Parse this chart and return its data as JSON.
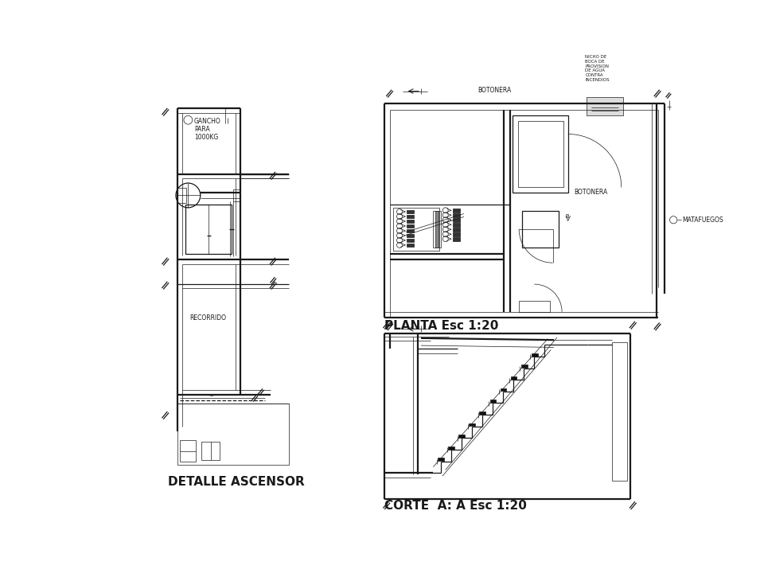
{
  "background_color": "#ffffff",
  "line_color": "#1a1a1a",
  "title1": "DETALLE ASCENSOR",
  "title2": "PLANTA Esc 1:20",
  "title3": "CORTE  A: A Esc 1:20",
  "title_fontsize": 11,
  "label_fontsize": 5.5,
  "text_color": "#1a1a1a",
  "gancho": "GANCHO\nPARA\n1000KG",
  "recorrido": "RECORRIDO",
  "botonera1": "BOTONERA",
  "botonera2": "BOTONERA",
  "matafuegos": "MATAFUEGOS",
  "nicho": "NICHO DE\nBOCA DE\nPROVISION\nDE AGUA\nCONTRA\nINCENDIOS",
  "lw_thin": 0.5,
  "lw_med": 0.9,
  "lw_thick": 1.6
}
